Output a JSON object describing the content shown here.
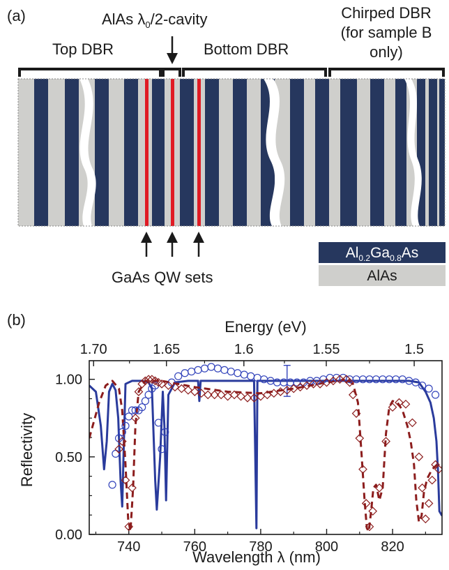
{
  "panel_a": {
    "label": "(a)",
    "top_dbr": "Top DBR",
    "cavity_prefix": "AlAs ",
    "cavity_sym": "λ",
    "cavity_sub": "0",
    "cavity_suffix": "/2-cavity",
    "bottom_dbr": "Bottom DBR",
    "chirped_line1": "Chirped DBR",
    "chirped_line2": "(for sample B",
    "chirped_line3": "only)",
    "qw_label": "GaAs QW sets",
    "legend": {
      "algaas": {
        "p1": "Al",
        "s1": "0.2",
        "p2": "Ga",
        "s2": "0.8",
        "p3": "As",
        "color": "#26375e"
      },
      "alas": {
        "text": "AlAs",
        "color": "#cfcfcc"
      }
    },
    "qw_color": "#e01b24"
  },
  "panel_b": {
    "label": "(b)",
    "chart_data": {
      "type": "line",
      "xlabel": "Wavelength λ (nm)",
      "ylabel": "Reflectivity",
      "top_axis_label": "Energy (eV)",
      "xlim": [
        728,
        835
      ],
      "ylim": [
        0,
        1.12
      ],
      "x_ticks": [
        "740",
        "760",
        "780",
        "800",
        "820"
      ],
      "y_ticks": [
        "0.00",
        "0.50",
        "1.00"
      ],
      "top_ticks": [
        "1.70",
        "1.65",
        "1.6",
        "1.55",
        "1.5"
      ],
      "top_tick_values_ev": [
        1.7,
        1.65,
        1.6,
        1.55,
        1.5
      ],
      "error_bar": {
        "x": 788,
        "y": 0.99,
        "err": 0.1
      },
      "series": [
        {
          "style": "solid line",
          "color": "#2a3b9c",
          "x": [
            728,
            730,
            731.5,
            732.5,
            733.3,
            734,
            735,
            736,
            736.8,
            737.5,
            738,
            738.5,
            739,
            741,
            744,
            746,
            747,
            748,
            748.5,
            749.5,
            750.3,
            750.8,
            751.3,
            752,
            754,
            758,
            761,
            761.4,
            761.8,
            763,
            770,
            778,
            778.7,
            779,
            779.3,
            780,
            790,
            800,
            810,
            815,
            820,
            825,
            828,
            830,
            831.5,
            832.5,
            833.3,
            833.8,
            834.2,
            835
          ],
          "y": [
            0.96,
            0.92,
            0.7,
            0.42,
            0.6,
            0.92,
            0.97,
            0.93,
            0.75,
            0.35,
            0.18,
            0.6,
            0.97,
            0.99,
            0.99,
            0.98,
            0.94,
            0.35,
            0.16,
            0.5,
            0.92,
            0.7,
            0.22,
            0.9,
            0.98,
            0.99,
            0.99,
            0.86,
            0.99,
            0.99,
            0.99,
            0.99,
            0.04,
            0.99,
            0.99,
            0.99,
            0.99,
            0.99,
            0.99,
            0.99,
            0.99,
            0.99,
            0.98,
            0.92,
            0.85,
            0.75,
            0.6,
            0.4,
            0.15,
            0.12
          ]
        },
        {
          "style": "dashed line",
          "color": "#8c1d1d",
          "x": [
            728,
            731,
            733,
            735,
            737,
            738,
            739,
            739.8,
            740.5,
            741.3,
            742,
            743,
            745,
            750,
            760,
            770,
            780,
            790,
            800,
            806,
            808,
            809.5,
            810.5,
            811.5,
            812.2,
            812.8,
            813.5,
            814.2,
            815,
            816,
            817,
            818,
            819,
            820,
            821.5,
            823,
            824.5,
            825.5,
            826.5,
            827.2,
            828,
            828.8,
            829.5,
            830.5,
            832,
            833.5,
            835
          ],
          "y": [
            0.62,
            0.85,
            0.96,
            0.99,
            0.94,
            0.8,
            0.45,
            0.1,
            0.02,
            0.3,
            0.7,
            0.92,
            0.99,
            0.99,
            0.95,
            0.92,
            0.91,
            0.94,
            0.98,
            1.0,
            0.97,
            0.85,
            0.55,
            0.22,
            0.04,
            0.02,
            0.15,
            0.3,
            0.32,
            0.22,
            0.3,
            0.65,
            0.82,
            0.86,
            0.85,
            0.8,
            0.7,
            0.6,
            0.45,
            0.22,
            0.08,
            0.12,
            0.27,
            0.36,
            0.42,
            0.45,
            0.44
          ]
        },
        {
          "style": "open circles",
          "color": "#3344bb",
          "x": [
            735,
            736,
            737,
            738,
            739,
            740,
            741,
            742,
            743,
            744,
            745,
            746,
            747,
            748,
            749,
            750,
            751,
            753,
            755,
            757,
            759,
            761,
            763,
            765,
            767,
            769,
            771,
            773,
            775,
            777,
            779,
            781,
            783,
            785,
            787,
            789,
            791,
            793,
            795,
            797,
            799,
            801,
            803,
            805,
            807,
            809,
            811,
            813,
            815,
            817,
            819,
            821,
            823,
            825,
            827,
            829,
            831,
            833
          ],
          "y": [
            0.32,
            0.52,
            0.62,
            0.66,
            0.7,
            0.76,
            0.8,
            0.8,
            0.8,
            0.82,
            0.86,
            0.9,
            0.94,
            0.96,
            0.72,
            0.55,
            0.66,
            0.98,
            1.02,
            1.04,
            1.05,
            1.06,
            1.07,
            1.08,
            1.07,
            1.06,
            1.05,
            1.04,
            1.03,
            1.02,
            1.01,
            1.0,
            0.99,
            0.98,
            0.98,
            0.98,
            0.98,
            0.98,
            0.99,
            0.99,
            1.0,
            1.01,
            1.01,
            1.01,
            1.0,
            1.0,
            1.0,
            1.0,
            1.0,
            1.0,
            1.0,
            1.0,
            1.0,
            0.99,
            0.98,
            0.96,
            0.94,
            0.9
          ]
        },
        {
          "style": "open diamonds",
          "color": "#8c1d1d",
          "x": [
            737,
            738,
            739,
            740,
            741,
            742,
            743,
            744,
            745,
            746,
            747,
            748,
            749,
            750,
            752,
            754,
            756,
            758,
            760,
            762,
            764,
            766,
            768,
            770,
            772,
            774,
            776,
            778,
            780,
            782,
            784,
            786,
            788,
            790,
            792,
            794,
            796,
            798,
            800,
            802,
            804,
            806,
            807,
            808,
            809,
            810,
            811,
            812,
            813,
            814,
            816,
            818,
            820,
            822,
            824,
            826,
            828,
            829,
            830,
            831,
            832,
            833,
            834
          ],
          "y": [
            0.55,
            0.6,
            0.35,
            0.05,
            0.3,
            0.75,
            0.92,
            0.97,
            0.99,
            1.0,
            1.0,
            0.99,
            0.98,
            0.97,
            0.96,
            0.95,
            0.94,
            0.93,
            0.92,
            0.91,
            0.9,
            0.9,
            0.9,
            0.89,
            0.9,
            0.89,
            0.88,
            0.88,
            0.89,
            0.9,
            0.91,
            0.92,
            0.93,
            0.94,
            0.95,
            0.96,
            0.97,
            0.97,
            0.98,
            0.99,
            1.0,
            1.0,
            0.98,
            0.9,
            0.78,
            0.62,
            0.42,
            0.2,
            0.05,
            0.15,
            0.3,
            0.6,
            0.82,
            0.85,
            0.84,
            0.72,
            0.5,
            0.3,
            0.1,
            0.2,
            0.35,
            0.45,
            0.42
          ]
        }
      ]
    }
  }
}
